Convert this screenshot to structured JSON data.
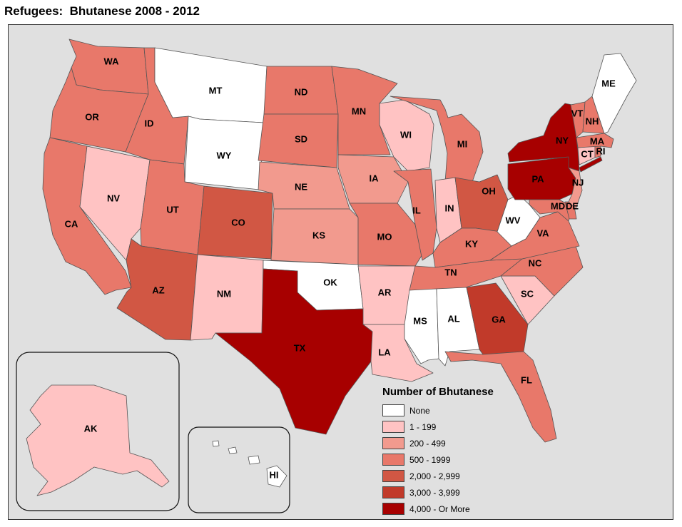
{
  "title": "Refugees:  Bhutanese 2008 - 2012",
  "legend": {
    "title": "Number of Bhutanese",
    "classes": [
      {
        "label": "None",
        "color": "#ffffff"
      },
      {
        "label": "1 - 199",
        "color": "#ffc3c3"
      },
      {
        "label": "200 - 499",
        "color": "#f29a8e"
      },
      {
        "label": "500 - 1999",
        "color": "#e8786a"
      },
      {
        "label": "2,000 - 2,999",
        "color": "#d15744"
      },
      {
        "label": "3,000 - 3,999",
        "color": "#c13a2a"
      },
      {
        "label": "4,000 - Or More",
        "color": "#a70000"
      }
    ]
  },
  "states": {
    "WA": 3,
    "OR": 3,
    "CA": 3,
    "NV": 1,
    "ID": 3,
    "MT": 0,
    "WY": 0,
    "UT": 3,
    "AZ": 4,
    "CO": 4,
    "NM": 1,
    "ND": 3,
    "SD": 3,
    "NE": 2,
    "KS": 2,
    "OK": 0,
    "TX": 6,
    "MN": 3,
    "IA": 2,
    "MO": 3,
    "AR": 1,
    "LA": 1,
    "WI": 1,
    "IL": 3,
    "MI": 3,
    "IN": 1,
    "OH": 4,
    "KY": 3,
    "TN": 3,
    "MS": 0,
    "AL": 0,
    "GA": 5,
    "FL": 3,
    "SC": 1,
    "NC": 3,
    "VA": 3,
    "WV": 0,
    "PA": 6,
    "NY": 6,
    "NJ": 2,
    "DE": 3,
    "MD": 3,
    "CT": 1,
    "RI": 3,
    "MA": 3,
    "VT": 3,
    "NH": 3,
    "ME": 0,
    "AK": 1,
    "HI": 0
  }
}
